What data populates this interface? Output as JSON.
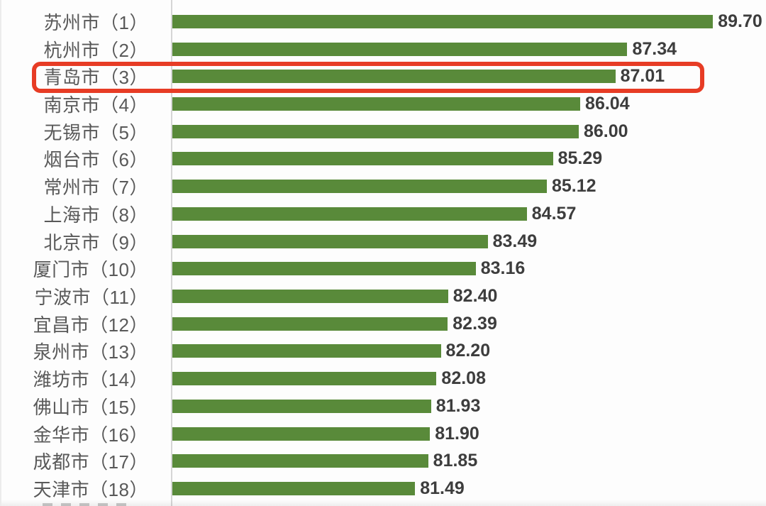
{
  "chart_data": {
    "type": "bar",
    "orientation": "horizontal",
    "title": "",
    "xlabel": "",
    "ylabel": "",
    "grid": false,
    "legend": false,
    "categories": [
      "苏州市（1）",
      "杭州市（2）",
      "青岛市（3）",
      "南京市（4）",
      "无锡市（5）",
      "烟台市（6）",
      "常州市（7）",
      "上海市（8）",
      "北京市（9）",
      "厦门市（10）",
      "宁波市（11）",
      "宜昌市（12）",
      "泉州市（13）",
      "潍坊市（14）",
      "佛山市（15）",
      "金华市（16）",
      "成都市（17）",
      "天津市（18）"
    ],
    "values": [
      89.7,
      87.34,
      87.01,
      86.04,
      86.0,
      85.29,
      85.12,
      84.57,
      83.49,
      83.16,
      82.4,
      82.39,
      82.2,
      82.08,
      81.93,
      81.9,
      81.85,
      81.49
    ],
    "value_labels": [
      "89.70",
      "87.34",
      "87.01",
      "86.04",
      "86.00",
      "85.29",
      "85.12",
      "84.57",
      "83.49",
      "83.16",
      "82.40",
      "82.39",
      "82.20",
      "82.08",
      "81.93",
      "81.90",
      "81.85",
      "81.49"
    ],
    "xlim": [
      74.8,
      91.2
    ],
    "highlight": {
      "index": 2,
      "category": "青岛市（3）",
      "value_label": "87.01",
      "style": "red-rounded-outline-box"
    },
    "colors": {
      "bar": "#598a3a",
      "label_text": "#595959",
      "value_text": "#3d3d3d",
      "highlight_border": "#e73c25",
      "axis_line": "#d6d6d6",
      "background": "#fdfdfd"
    }
  }
}
